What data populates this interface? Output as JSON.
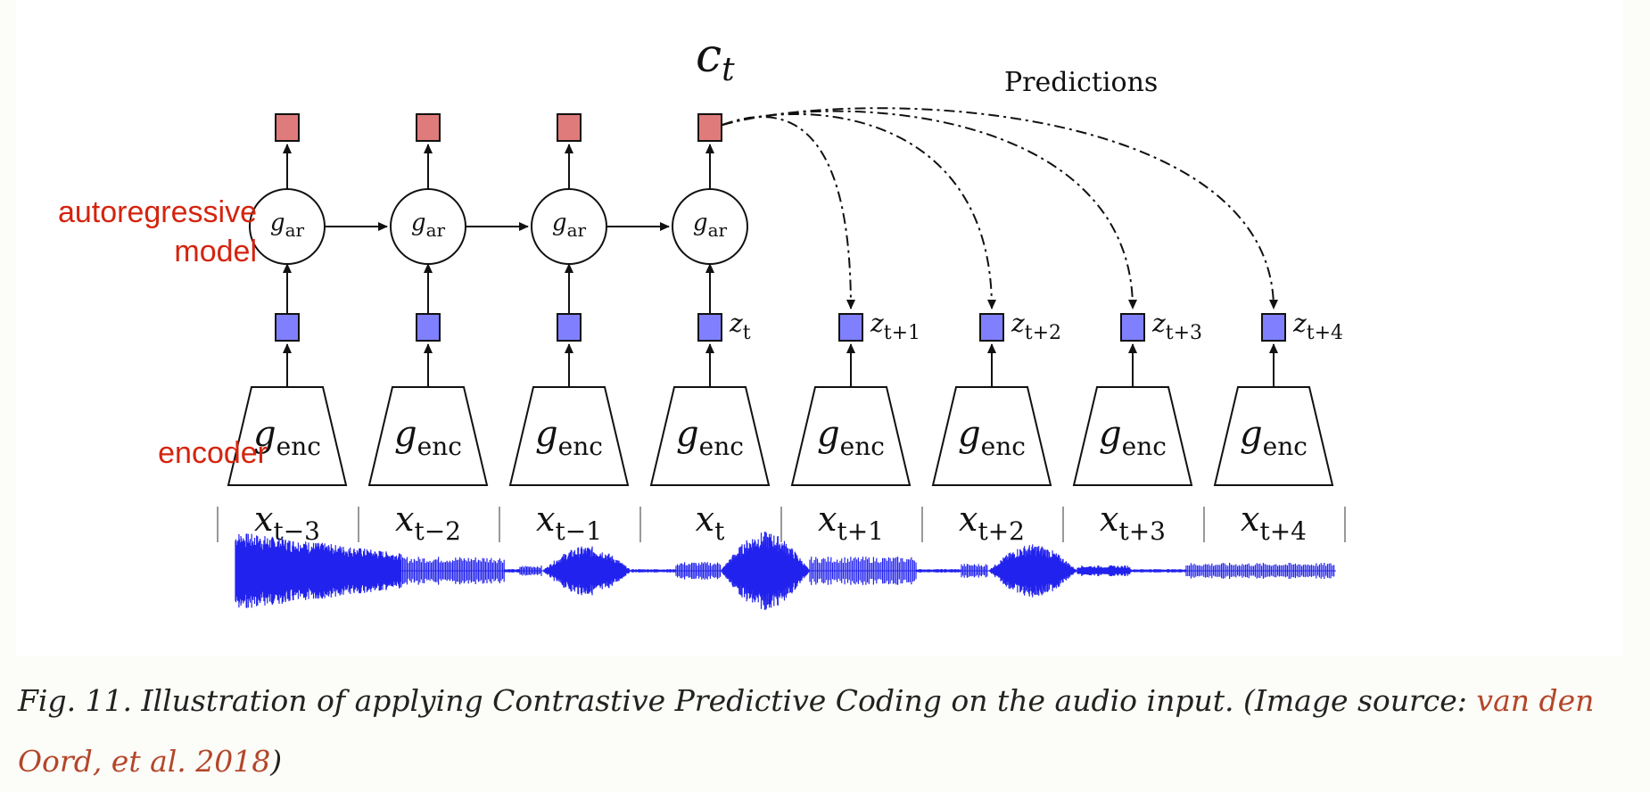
{
  "diagram": {
    "predictions_label": "Predictions",
    "context_label": {
      "main": "c",
      "sub": "t"
    },
    "side_labels": {
      "autoregressive": "autoregressive\nmodel",
      "encoder": "encoder"
    },
    "columns": [
      {
        "x_sub": "t−3",
        "z_sub": "",
        "ar": true
      },
      {
        "x_sub": "t−2",
        "z_sub": "",
        "ar": true
      },
      {
        "x_sub": "t−1",
        "z_sub": "",
        "ar": true
      },
      {
        "x_sub": "t",
        "z_sub": "t",
        "ar": true
      },
      {
        "x_sub": "t+1",
        "z_sub": "t+1",
        "ar": false
      },
      {
        "x_sub": "t+2",
        "z_sub": "t+2",
        "ar": false
      },
      {
        "x_sub": "t+3",
        "z_sub": "t+3",
        "ar": false
      },
      {
        "x_sub": "t+4",
        "z_sub": "t+4",
        "ar": false
      }
    ],
    "ar_node": {
      "main": "g",
      "sub": "ar"
    },
    "enc_node": {
      "main": "g",
      "sub": "enc"
    },
    "colors": {
      "context_square": "#e07b7b",
      "latent_square": "#8080ff",
      "waveform": "#2222ee",
      "label_red": "#d4240f"
    }
  },
  "caption": {
    "text": "Fig. 11. Illustration of applying Contrastive Predictive Coding on the audio input. (Image source: ",
    "link": "van den Oord, et al. 2018",
    "close": ")"
  }
}
